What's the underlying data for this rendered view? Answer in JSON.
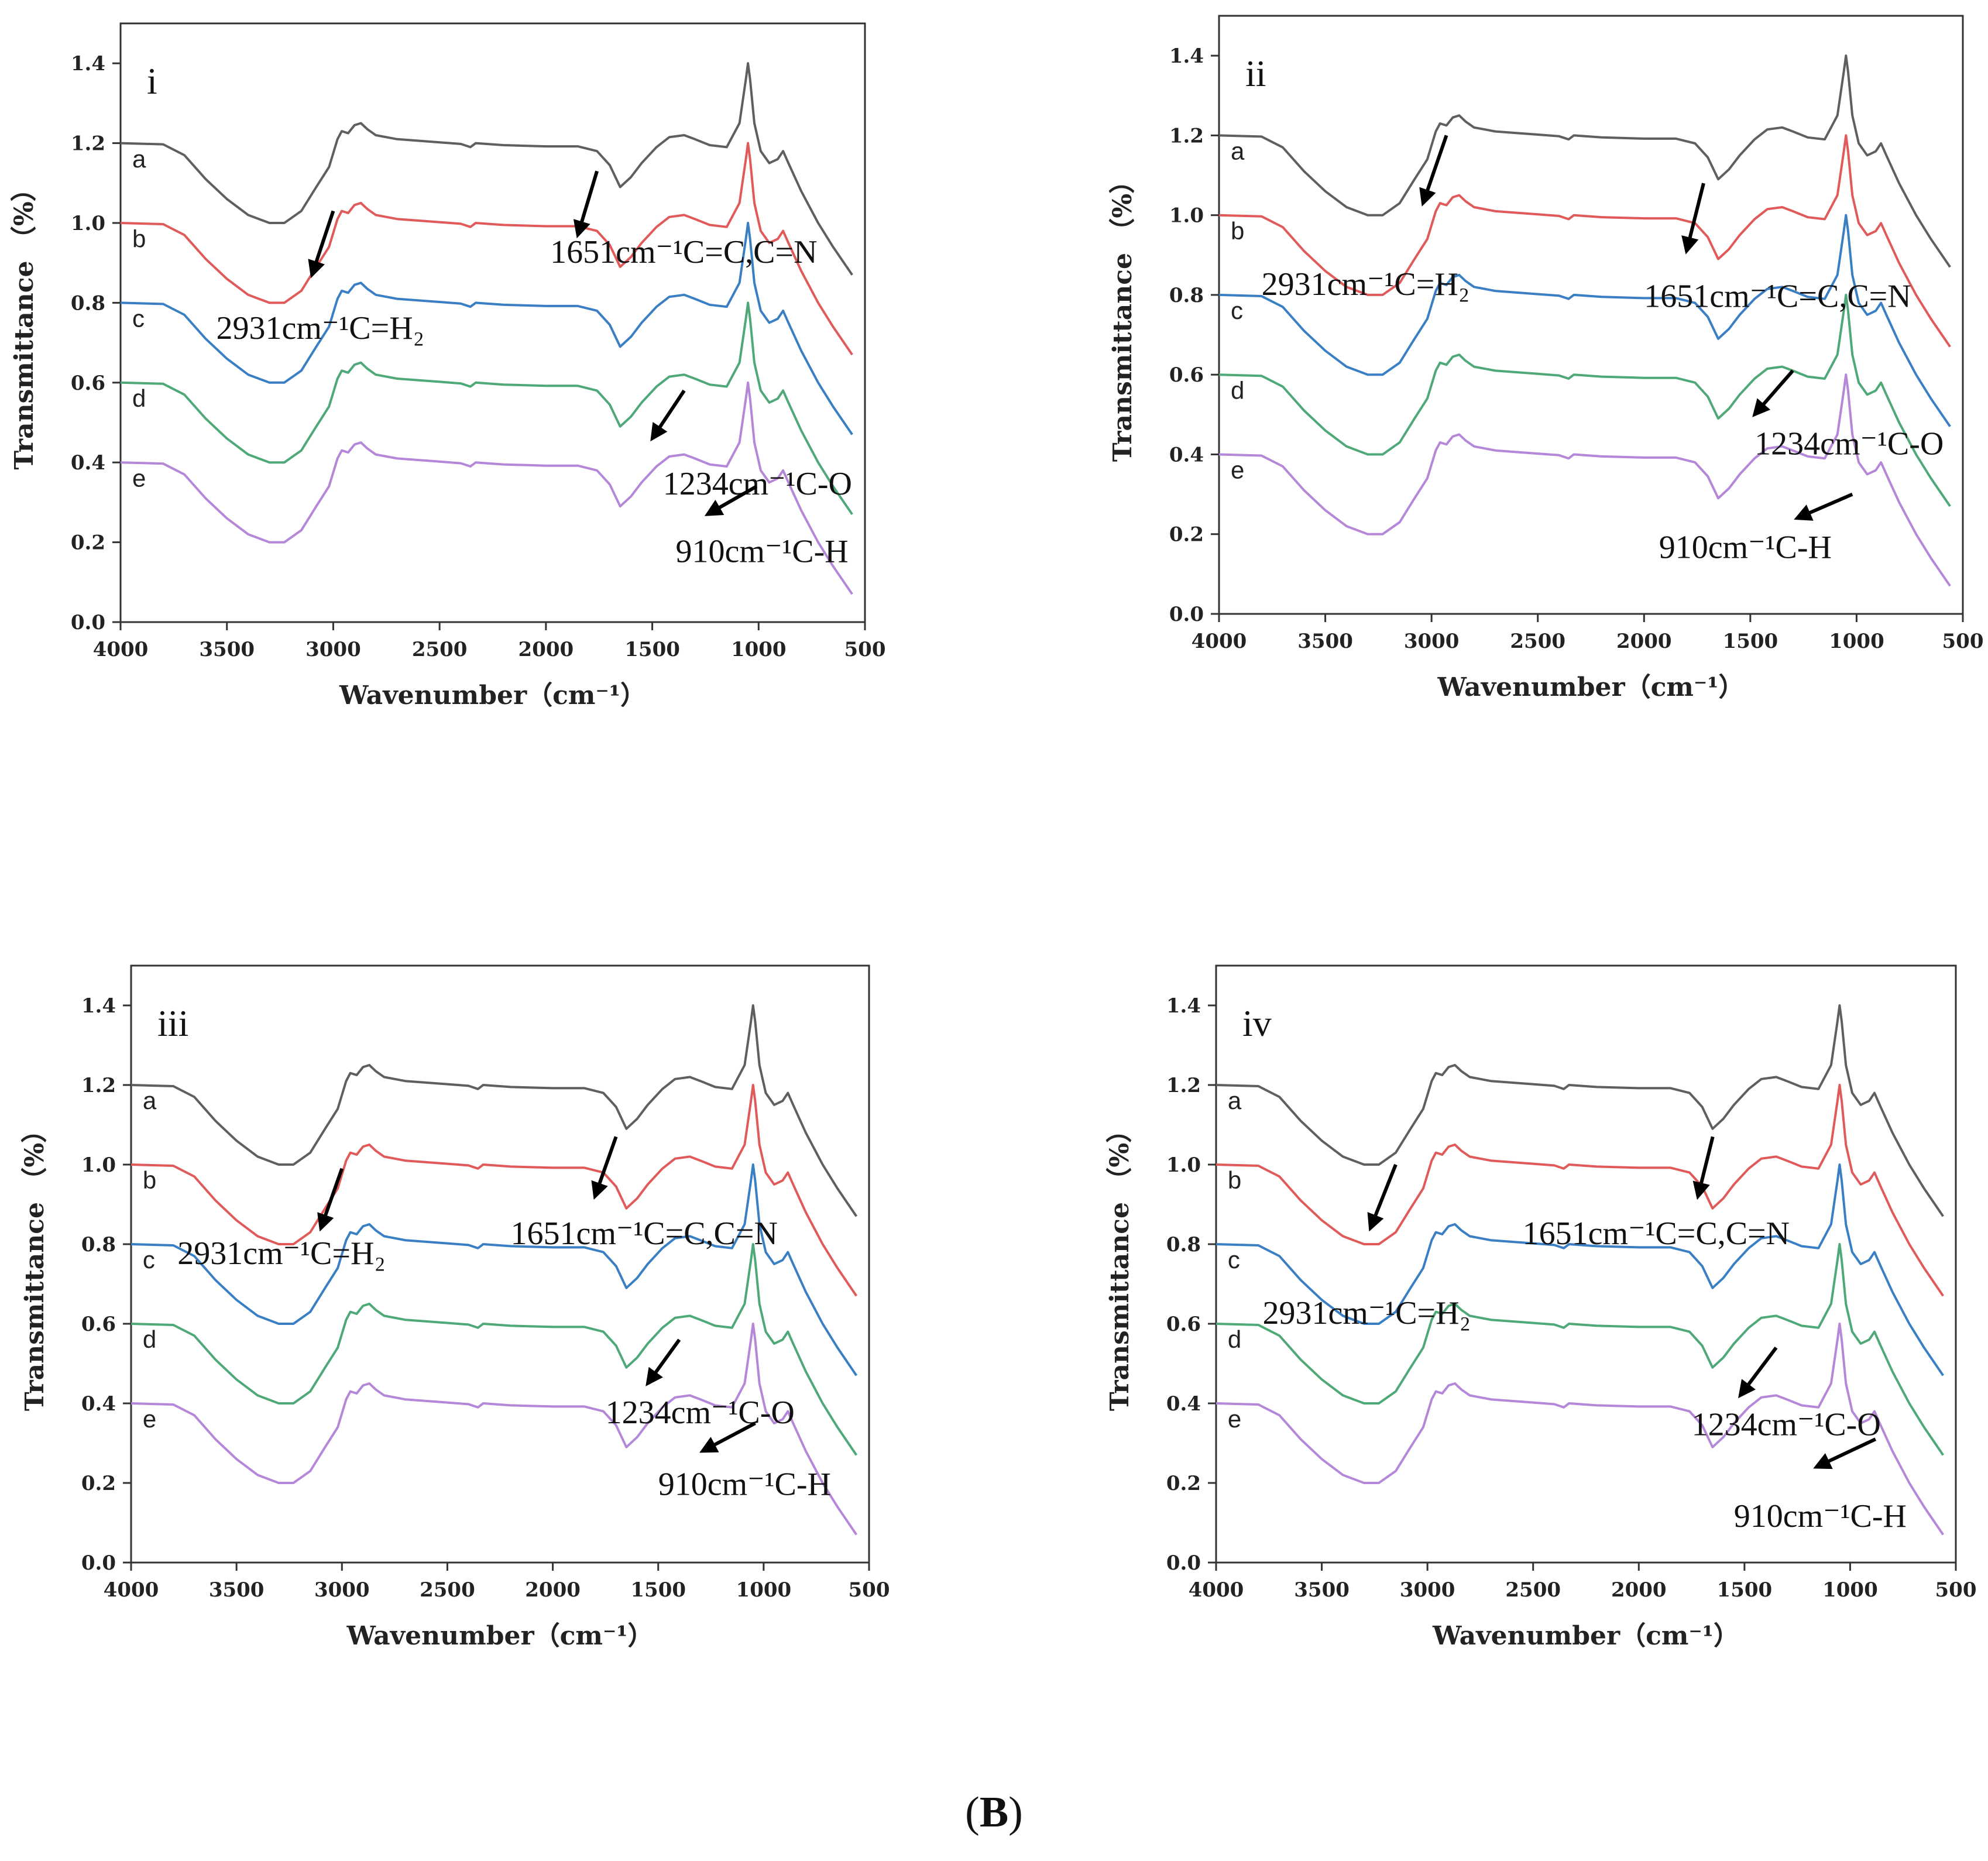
{
  "caption": {
    "open": "(",
    "letter": "B",
    "close": ")"
  },
  "colors": {
    "a": "#5f5f5f",
    "b": "#e05a5a",
    "c": "#3a7fc4",
    "d": "#4fa878",
    "e": "#b487d8",
    "arrow": "#000000",
    "frame": "#333333"
  },
  "chart_data": [
    {
      "type": "line",
      "panel_label": "i",
      "xlabel": "Wavenumber（cm⁻¹）",
      "ylabel": "Transmittance （%）",
      "xlim": [
        4000,
        500
      ],
      "ylim": [
        0.0,
        1.5
      ],
      "x_reversed": true,
      "xticks": [
        "4000",
        "3500",
        "3000",
        "2500",
        "2000",
        "1500",
        "1000",
        "500"
      ],
      "yticks": [
        "0.0",
        "0.2",
        "0.4",
        "0.6",
        "0.8",
        "1.0",
        "1.2",
        "1.4"
      ],
      "series": [
        {
          "name": "a",
          "color": "#5f5f5f",
          "baseline": 1.2,
          "label_y": 1.16
        },
        {
          "name": "b",
          "color": "#e05a5a",
          "baseline": 1.0,
          "label_y": 0.96
        },
        {
          "name": "c",
          "color": "#3a7fc4",
          "baseline": 0.8,
          "label_y": 0.76
        },
        {
          "name": "d",
          "color": "#4fa878",
          "baseline": 0.6,
          "label_y": 0.56
        },
        {
          "name": "e",
          "color": "#b487d8",
          "baseline": 0.4,
          "label_y": 0.36
        }
      ],
      "annotations": [
        {
          "text": "1651cm⁻¹C=C,C=N",
          "tx": 1980,
          "ty": 0.9,
          "ax1": 1760,
          "ay1": 1.13,
          "ax2": 1850,
          "ay2": 0.97
        },
        {
          "text": "2931cm⁻¹C=H₂",
          "tx": 3550,
          "ty": 0.71,
          "ax1": 3000,
          "ay1": 1.03,
          "ax2": 3100,
          "ay2": 0.87
        },
        {
          "text": "1234cm⁻¹C-O",
          "tx": 1450,
          "ty": 0.32,
          "ax1": 1350,
          "ay1": 0.58,
          "ax2": 1500,
          "ay2": 0.46
        },
        {
          "text": "910cm⁻¹C-H",
          "tx": 1390,
          "ty": 0.15,
          "ax1": 1010,
          "ay1": 0.34,
          "ax2": 1240,
          "ay2": 0.27
        }
      ]
    },
    {
      "type": "line",
      "panel_label": "ii",
      "xlabel": "Wavenumber（cm⁻¹）",
      "ylabel": "Transmittance （%）",
      "xlim": [
        4000,
        500
      ],
      "ylim": [
        0.0,
        1.5
      ],
      "x_reversed": true,
      "xticks": [
        "4000",
        "3500",
        "3000",
        "2500",
        "2000",
        "1500",
        "1000",
        "500"
      ],
      "yticks": [
        "0.0",
        "0.2",
        "0.4",
        "0.6",
        "0.8",
        "1.0",
        "1.2",
        "1.4"
      ],
      "series": [
        {
          "name": "a",
          "color": "#5f5f5f",
          "baseline": 1.2,
          "label_y": 1.16
        },
        {
          "name": "b",
          "color": "#e05a5a",
          "baseline": 1.0,
          "label_y": 0.96
        },
        {
          "name": "c",
          "color": "#3a7fc4",
          "baseline": 0.8,
          "label_y": 0.76
        },
        {
          "name": "d",
          "color": "#4fa878",
          "baseline": 0.6,
          "label_y": 0.56
        },
        {
          "name": "e",
          "color": "#b487d8",
          "baseline": 0.4,
          "label_y": 0.36
        }
      ],
      "annotations": [
        {
          "text": "2931cm⁻¹C=H₂",
          "tx": 3800,
          "ty": 0.8,
          "ax1": 2930,
          "ay1": 1.2,
          "ax2": 3040,
          "ay2": 1.03
        },
        {
          "text": "1651cm⁻¹C=C,C=N",
          "tx": 2000,
          "ty": 0.77,
          "ax1": 1720,
          "ay1": 1.08,
          "ax2": 1800,
          "ay2": 0.91
        },
        {
          "text": "1234cm⁻¹C-O",
          "tx": 1480,
          "ty": 0.4,
          "ax1": 1300,
          "ay1": 0.61,
          "ax2": 1480,
          "ay2": 0.5
        },
        {
          "text": "910cm⁻¹C-H",
          "tx": 1930,
          "ty": 0.14,
          "ax1": 1020,
          "ay1": 0.3,
          "ax2": 1280,
          "ay2": 0.24
        }
      ]
    },
    {
      "type": "line",
      "panel_label": "iii",
      "xlabel": "Wavenumber（cm⁻¹）",
      "ylabel": "Transmittance （%）",
      "xlim": [
        4000,
        500
      ],
      "ylim": [
        0.0,
        1.5
      ],
      "x_reversed": true,
      "xticks": [
        "4000",
        "3500",
        "3000",
        "2500",
        "2000",
        "1500",
        "1000",
        "500"
      ],
      "yticks": [
        "0.0",
        "0.2",
        "0.4",
        "0.6",
        "0.8",
        "1.0",
        "1.2",
        "1.4"
      ],
      "series": [
        {
          "name": "a",
          "color": "#5f5f5f",
          "baseline": 1.2,
          "label_y": 1.16
        },
        {
          "name": "b",
          "color": "#e05a5a",
          "baseline": 1.0,
          "label_y": 0.96
        },
        {
          "name": "c",
          "color": "#3a7fc4",
          "baseline": 0.8,
          "label_y": 0.76
        },
        {
          "name": "d",
          "color": "#4fa878",
          "baseline": 0.6,
          "label_y": 0.56
        },
        {
          "name": "e",
          "color": "#b487d8",
          "baseline": 0.4,
          "label_y": 0.36
        }
      ],
      "annotations": [
        {
          "text": "1651cm⁻¹C=C,C=N",
          "tx": 2200,
          "ty": 0.8,
          "ax1": 1700,
          "ay1": 1.07,
          "ax2": 1800,
          "ay2": 0.92
        },
        {
          "text": "2931cm⁻¹C=H₂",
          "tx": 3780,
          "ty": 0.75,
          "ax1": 3000,
          "ay1": 0.99,
          "ax2": 3100,
          "ay2": 0.84
        },
        {
          "text": "1234cm⁻¹C-O",
          "tx": 1750,
          "ty": 0.35,
          "ax1": 1400,
          "ay1": 0.56,
          "ax2": 1550,
          "ay2": 0.45
        },
        {
          "text": "910cm⁻¹C-H",
          "tx": 1500,
          "ty": 0.17,
          "ax1": 1040,
          "ay1": 0.35,
          "ax2": 1290,
          "ay2": 0.28
        }
      ]
    },
    {
      "type": "line",
      "panel_label": "iv",
      "xlabel": "Wavenumber（cm⁻¹）",
      "ylabel": "Transmittance （%）",
      "xlim": [
        4000,
        500
      ],
      "ylim": [
        0.0,
        1.5
      ],
      "x_reversed": true,
      "xticks": [
        "4000",
        "3500",
        "3000",
        "2500",
        "2000",
        "1500",
        "1000",
        "500"
      ],
      "yticks": [
        "0.0",
        "0.2",
        "0.4",
        "0.6",
        "0.8",
        "1.0",
        "1.2",
        "1.4"
      ],
      "series": [
        {
          "name": "a",
          "color": "#5f5f5f",
          "baseline": 1.2,
          "label_y": 1.16
        },
        {
          "name": "b",
          "color": "#e05a5a",
          "baseline": 1.0,
          "label_y": 0.96
        },
        {
          "name": "c",
          "color": "#3a7fc4",
          "baseline": 0.8,
          "label_y": 0.76
        },
        {
          "name": "d",
          "color": "#4fa878",
          "baseline": 0.6,
          "label_y": 0.56
        },
        {
          "name": "e",
          "color": "#b487d8",
          "baseline": 0.4,
          "label_y": 0.36
        }
      ],
      "annotations": [
        {
          "text": "1651cm⁻¹C=C,C=N",
          "tx": 2550,
          "ty": 0.8,
          "ax1": 1650,
          "ay1": 1.07,
          "ax2": 1720,
          "ay2": 0.92
        },
        {
          "text": "2931cm⁻¹C=H₂",
          "tx": 3780,
          "ty": 0.6,
          "ax1": 3150,
          "ay1": 1.0,
          "ax2": 3270,
          "ay2": 0.84
        },
        {
          "text": "1234cm⁻¹C-O",
          "tx": 1750,
          "ty": 0.32,
          "ax1": 1350,
          "ay1": 0.54,
          "ax2": 1520,
          "ay2": 0.42
        },
        {
          "text": "910cm⁻¹C-H",
          "tx": 1550,
          "ty": 0.09,
          "ax1": 880,
          "ay1": 0.31,
          "ax2": 1160,
          "ay2": 0.24
        }
      ]
    }
  ]
}
